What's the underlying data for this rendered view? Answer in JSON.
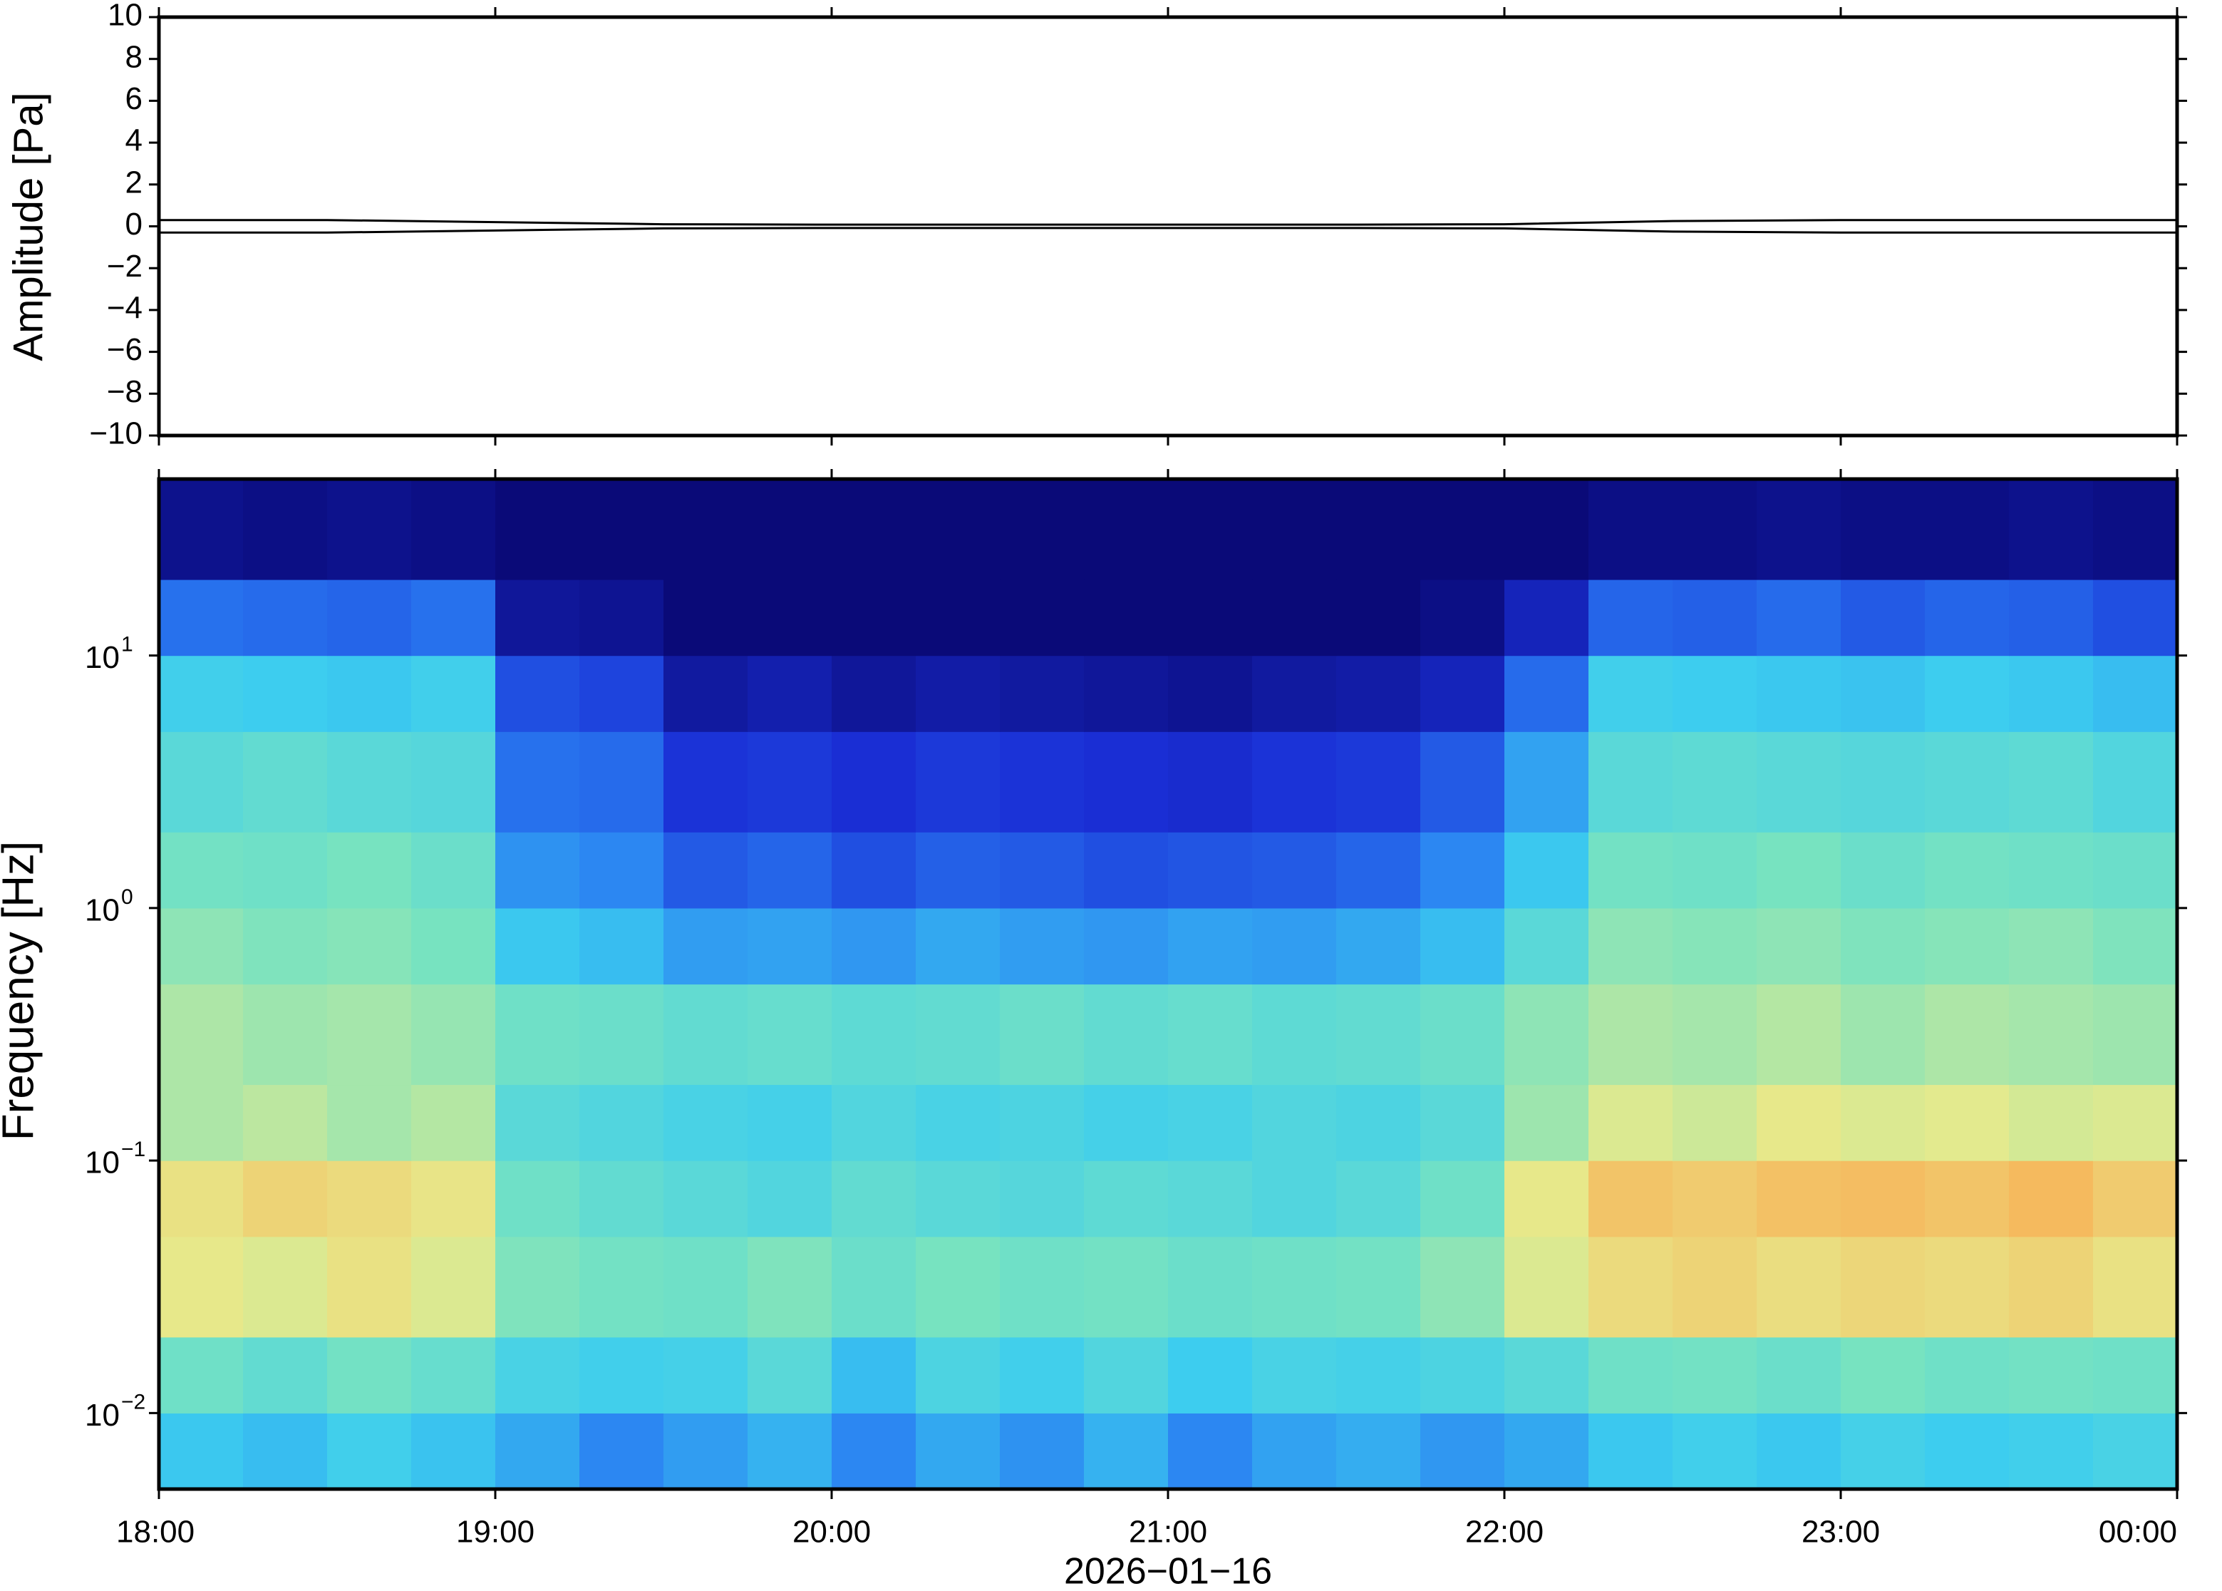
{
  "chart_data": [
    {
      "type": "line",
      "ylabel": "Amplitude [Pa]",
      "x": [
        18,
        18.5,
        19,
        19.5,
        20,
        20.5,
        21,
        21.5,
        22,
        22.5,
        23,
        23.5,
        24
      ],
      "values": [
        0.3,
        0.3,
        0.2,
        0.1,
        0.08,
        0.08,
        0.08,
        0.08,
        0.1,
        0.25,
        0.3,
        0.3,
        0.3
      ],
      "color": "#000000",
      "xlim": [
        18,
        24
      ],
      "xticks": [
        18,
        19,
        20,
        21,
        22,
        23,
        24
      ],
      "ylim": [
        -10,
        10
      ],
      "yticks": [
        {
          "value": -10,
          "label": "−10"
        },
        {
          "value": -8,
          "label": "−8"
        },
        {
          "value": -6,
          "label": "−6"
        },
        {
          "value": -4,
          "label": "−4"
        },
        {
          "value": -2,
          "label": "−2"
        },
        0,
        2,
        4,
        6,
        8,
        10
      ]
    },
    {
      "type": "heatmap",
      "ylabel": "Frequency [Hz]",
      "xlabel": "2026−01−16",
      "log_y": true,
      "x": [
        18,
        18.25,
        18.5,
        18.75,
        19,
        19.25,
        19.5,
        19.75,
        20,
        20.25,
        20.5,
        20.75,
        21,
        21.25,
        21.5,
        21.75,
        22,
        22.25,
        22.5,
        22.75,
        23,
        23.25,
        23.5,
        23.75,
        24
      ],
      "y": [
        0.005,
        0.01,
        0.02,
        0.05,
        0.1,
        0.2,
        0.5,
        1,
        2,
        5,
        10,
        20,
        50
      ],
      "colormap": [
        "#0a0a78",
        "#1a2fd6",
        "#2a7ff2",
        "#3ccdef",
        "#78e3c0",
        "#e6ea8c",
        "#f6b75c",
        "#e8552f"
      ],
      "values": [
        [
          0.42,
          0.4,
          0.44,
          0.41,
          0.36,
          0.3,
          0.34,
          0.38,
          0.3,
          0.36,
          0.32,
          0.38,
          0.3,
          0.35,
          0.37,
          0.33,
          0.36,
          0.42,
          0.44,
          0.42,
          0.45,
          0.43,
          0.44,
          0.46
        ],
        [
          0.55,
          0.52,
          0.56,
          0.53,
          0.46,
          0.44,
          0.45,
          0.5,
          0.4,
          0.47,
          0.44,
          0.48,
          0.43,
          0.46,
          0.45,
          0.47,
          0.5,
          0.55,
          0.56,
          0.54,
          0.57,
          0.55,
          0.56,
          0.55
        ],
        [
          0.72,
          0.7,
          0.74,
          0.7,
          0.58,
          0.56,
          0.55,
          0.58,
          0.54,
          0.57,
          0.55,
          0.56,
          0.54,
          0.55,
          0.56,
          0.6,
          0.7,
          0.76,
          0.78,
          0.75,
          0.77,
          0.76,
          0.78,
          0.74
        ],
        [
          0.74,
          0.78,
          0.76,
          0.73,
          0.55,
          0.52,
          0.5,
          0.48,
          0.52,
          0.5,
          0.49,
          0.51,
          0.5,
          0.48,
          0.5,
          0.55,
          0.72,
          0.82,
          0.8,
          0.83,
          0.84,
          0.82,
          0.85,
          0.8
        ],
        [
          0.64,
          0.66,
          0.63,
          0.65,
          0.5,
          0.48,
          0.46,
          0.45,
          0.48,
          0.46,
          0.47,
          0.45,
          0.46,
          0.48,
          0.47,
          0.5,
          0.62,
          0.7,
          0.68,
          0.72,
          0.7,
          0.71,
          0.69,
          0.7
        ],
        [
          0.64,
          0.62,
          0.63,
          0.61,
          0.55,
          0.54,
          0.52,
          0.53,
          0.51,
          0.52,
          0.54,
          0.52,
          0.53,
          0.51,
          0.52,
          0.54,
          0.6,
          0.64,
          0.63,
          0.65,
          0.62,
          0.64,
          0.63,
          0.62
        ],
        [
          0.6,
          0.58,
          0.59,
          0.57,
          0.42,
          0.4,
          0.34,
          0.35,
          0.33,
          0.36,
          0.34,
          0.33,
          0.35,
          0.34,
          0.36,
          0.4,
          0.5,
          0.6,
          0.59,
          0.6,
          0.58,
          0.59,
          0.6,
          0.58
        ],
        [
          0.56,
          0.55,
          0.57,
          0.54,
          0.32,
          0.3,
          0.22,
          0.24,
          0.2,
          0.23,
          0.22,
          0.2,
          0.21,
          0.22,
          0.24,
          0.3,
          0.42,
          0.56,
          0.55,
          0.57,
          0.54,
          0.56,
          0.55,
          0.54
        ],
        [
          0.5,
          0.52,
          0.5,
          0.49,
          0.26,
          0.25,
          0.15,
          0.16,
          0.14,
          0.16,
          0.15,
          0.14,
          0.13,
          0.15,
          0.16,
          0.22,
          0.35,
          0.5,
          0.51,
          0.5,
          0.49,
          0.5,
          0.51,
          0.48
        ],
        [
          0.44,
          0.43,
          0.42,
          0.44,
          0.2,
          0.18,
          0.06,
          0.08,
          0.05,
          0.07,
          0.06,
          0.05,
          0.04,
          0.06,
          0.07,
          0.1,
          0.25,
          0.44,
          0.43,
          0.42,
          0.41,
          0.43,
          0.42,
          0.4
        ],
        [
          0.26,
          0.25,
          0.24,
          0.26,
          0.05,
          0.04,
          0,
          0,
          0,
          0,
          0,
          0,
          0,
          0,
          0,
          0.02,
          0.1,
          0.24,
          0.23,
          0.25,
          0.22,
          0.24,
          0.23,
          0.2
        ],
        [
          0.03,
          0.02,
          0.03,
          0.02,
          0,
          0,
          0,
          0,
          0,
          0,
          0,
          0,
          0,
          0,
          0,
          0,
          0,
          0.02,
          0.02,
          0.03,
          0.02,
          0.02,
          0.03,
          0.02
        ]
      ],
      "xlim": [
        18,
        24
      ],
      "xticks": [
        {
          "value": 18,
          "label": "18:00"
        },
        {
          "value": 19,
          "label": "19:00"
        },
        {
          "value": 20,
          "label": "20:00"
        },
        {
          "value": 21,
          "label": "21:00"
        },
        {
          "value": 22,
          "label": "22:00"
        },
        {
          "value": 23,
          "label": "23:00"
        },
        {
          "value": 24,
          "label": "00:00"
        }
      ],
      "ylim": [
        0.005,
        50
      ],
      "yticks": [
        {
          "value": 0.01,
          "label": "10",
          "exponent": "−2"
        },
        {
          "value": 0.1,
          "label": "10",
          "exponent": "−1"
        },
        {
          "value": 1,
          "label": "10",
          "exponent": "0"
        },
        {
          "value": 10,
          "label": "10",
          "exponent": "1"
        }
      ]
    }
  ]
}
